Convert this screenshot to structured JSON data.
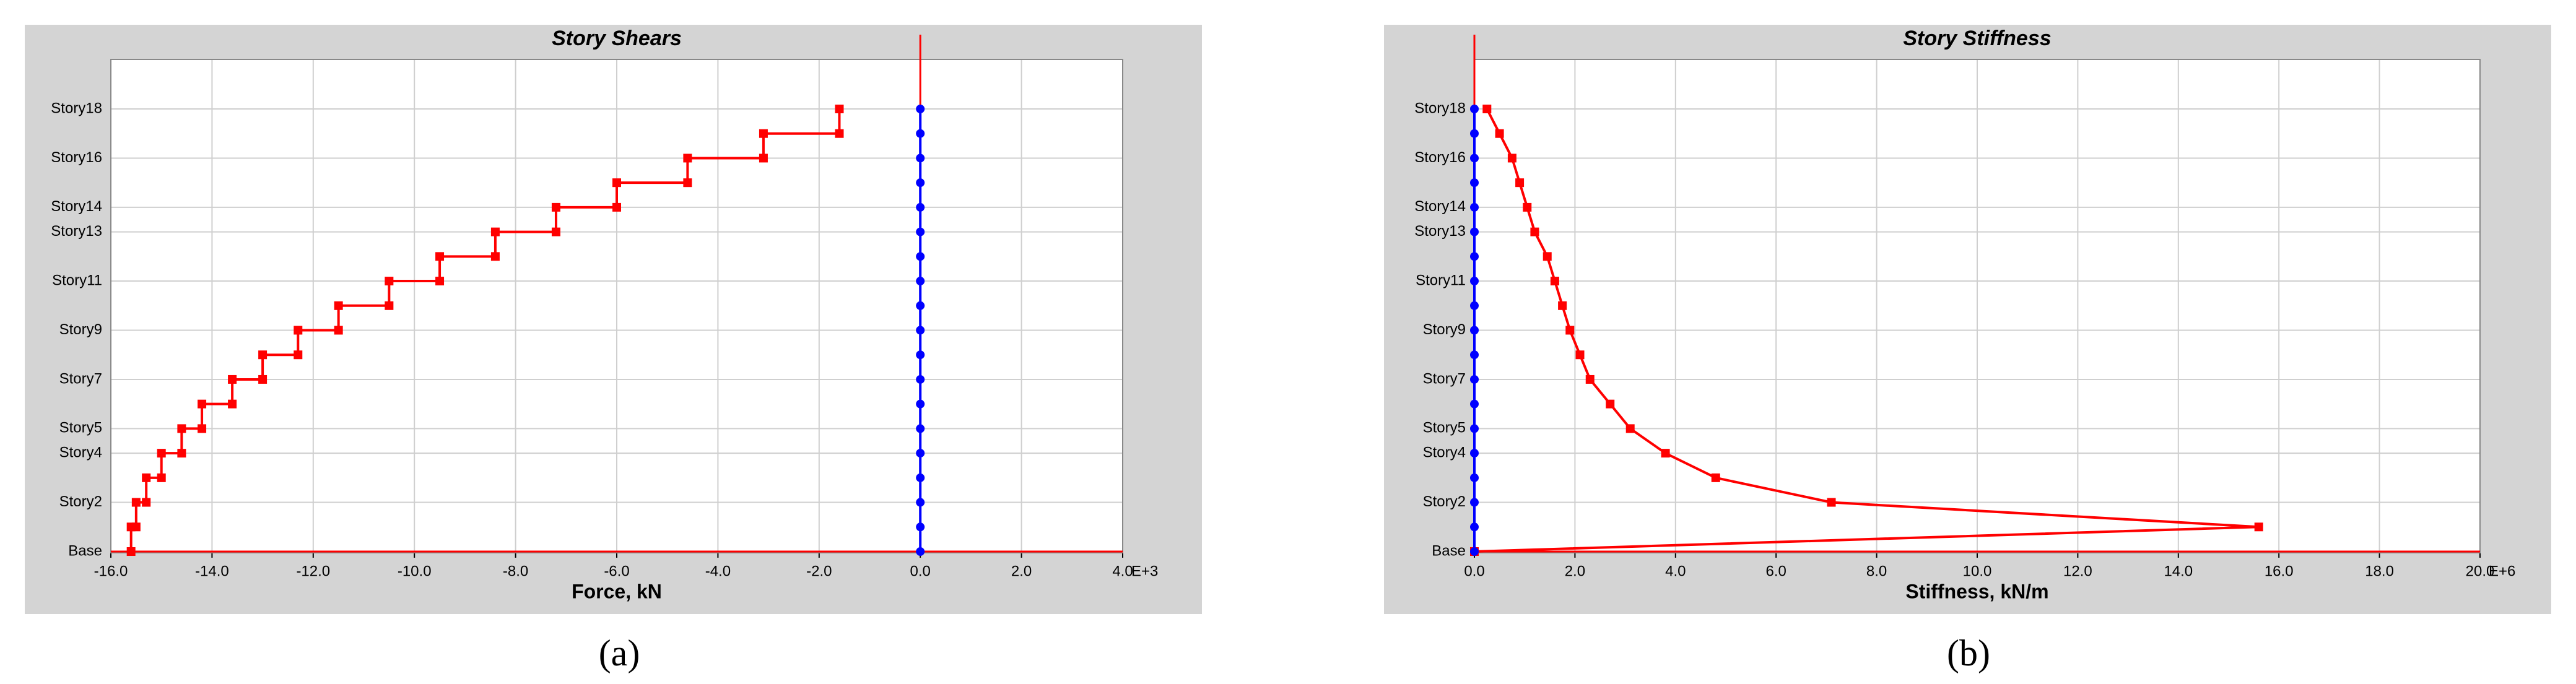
{
  "chart_data": [
    {
      "type": "step",
      "title": "Story Shears",
      "x_label": "Force, kN",
      "x_unit": "E+3",
      "categories": [
        "Base",
        null,
        "Story2",
        null,
        "Story4",
        "Story5",
        null,
        "Story7",
        null,
        "Story9",
        null,
        "Story11",
        null,
        "Story13",
        "Story14",
        null,
        "Story16",
        null,
        "Story18"
      ],
      "series": [
        {
          "color": "#ff0000",
          "values": [
            null,
            -15.6,
            -15.5,
            -15.3,
            -15.0,
            -14.6,
            -14.2,
            -13.6,
            -13.0,
            -12.3,
            -11.5,
            -10.5,
            -9.5,
            -8.4,
            -7.2,
            -6.0,
            -4.6,
            -3.1,
            -1.6
          ]
        },
        {
          "color": "#0000ff",
          "values": [
            0,
            0,
            0,
            0,
            0,
            0,
            0,
            0,
            0,
            0,
            0,
            0,
            0,
            0,
            0,
            0,
            0,
            0,
            0
          ]
        }
      ],
      "xlim": [
        -16,
        4
      ],
      "xticks": [
        {
          "value": -16,
          "label": "-16.0"
        },
        {
          "value": -14,
          "label": "-14.0"
        },
        {
          "value": -12,
          "label": "-12.0"
        },
        {
          "value": -10,
          "label": "-10.0"
        },
        {
          "value": -8,
          "label": "-8.0"
        },
        {
          "value": -6,
          "label": "-6.0"
        },
        {
          "value": -4,
          "label": "-4.0"
        },
        {
          "value": -2,
          "label": "-2.0"
        },
        {
          "value": 0,
          "label": "0.0"
        },
        {
          "value": 2,
          "label": "2.0"
        },
        {
          "value": 4,
          "label": "4.0"
        }
      ],
      "grid": true,
      "caption": "(a)"
    },
    {
      "type": "line",
      "title": "Story Stiffness",
      "x_label": "Stiffness, kN/m",
      "x_unit": "E+6",
      "categories": [
        "Base",
        null,
        "Story2",
        null,
        "Story4",
        "Story5",
        null,
        "Story7",
        null,
        "Story9",
        null,
        "Story11",
        null,
        "Story13",
        "Story14",
        null,
        "Story16",
        null,
        "Story18"
      ],
      "series": [
        {
          "color": "#ff0000",
          "values": [
            0,
            15.6,
            7.1,
            4.8,
            3.8,
            3.1,
            2.7,
            2.3,
            2.1,
            1.9,
            1.75,
            1.6,
            1.45,
            1.2,
            1.05,
            0.9,
            0.75,
            0.5,
            0.25
          ]
        },
        {
          "color": "#0000ff",
          "values": [
            0,
            0,
            0,
            0,
            0,
            0,
            0,
            0,
            0,
            0,
            0,
            0,
            0,
            0,
            0,
            0,
            0,
            0,
            0
          ]
        }
      ],
      "xlim": [
        0,
        20
      ],
      "xticks": [
        {
          "value": 0,
          "label": "0.0"
        },
        {
          "value": 2,
          "label": "2.0"
        },
        {
          "value": 4,
          "label": "4.0"
        },
        {
          "value": 6,
          "label": "6.0"
        },
        {
          "value": 8,
          "label": "8.0"
        },
        {
          "value": 10,
          "label": "10.0"
        },
        {
          "value": 12,
          "label": "12.0"
        },
        {
          "value": 14,
          "label": "14.0"
        },
        {
          "value": 16,
          "label": "16.0"
        },
        {
          "value": 18,
          "label": "18.0"
        },
        {
          "value": 20,
          "label": "20.0"
        }
      ],
      "grid": true,
      "caption": "(b)"
    }
  ]
}
